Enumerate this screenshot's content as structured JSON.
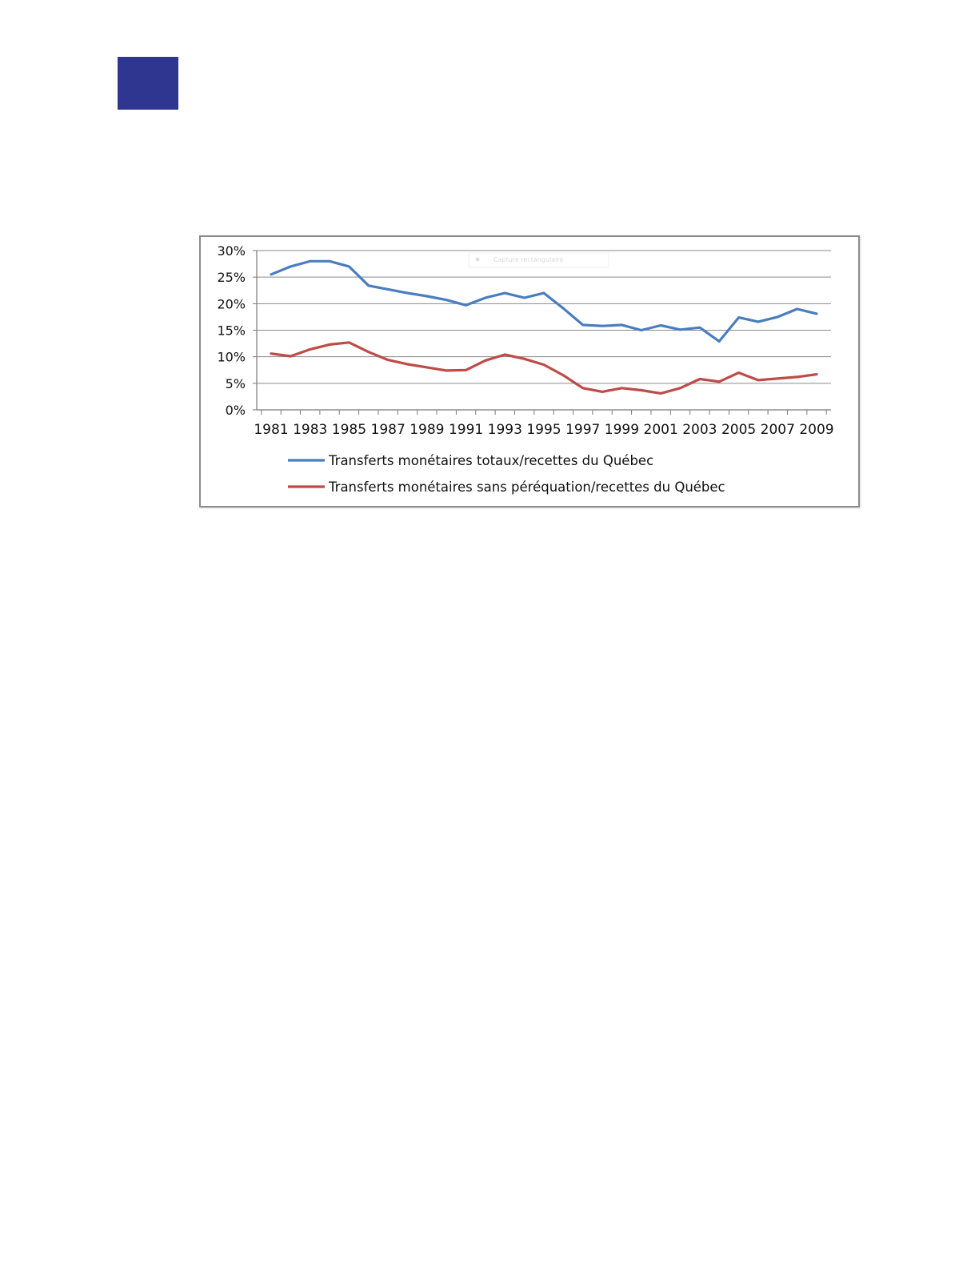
{
  "page": {
    "corner_block_color": "#2e3690"
  },
  "chart_data": {
    "type": "line",
    "title": "",
    "xlabel": "",
    "ylabel": "",
    "x": [
      1981,
      1982,
      1983,
      1984,
      1985,
      1986,
      1987,
      1988,
      1989,
      1990,
      1991,
      1992,
      1993,
      1994,
      1995,
      1996,
      1997,
      1998,
      1999,
      2000,
      2001,
      2002,
      2003,
      2004,
      2005,
      2006,
      2007,
      2008,
      2009
    ],
    "x_tick_labels": [
      "1981",
      "1983",
      "1985",
      "1987",
      "1989",
      "1991",
      "1993",
      "1995",
      "1997",
      "1999",
      "2001",
      "2003",
      "2005",
      "2007",
      "2009"
    ],
    "ylim": [
      0,
      30
    ],
    "y_ticks": [
      0,
      5,
      10,
      15,
      20,
      25,
      30
    ],
    "y_tick_labels": [
      "0%",
      "5%",
      "10%",
      "15%",
      "20%",
      "25%",
      "30%"
    ],
    "grid": true,
    "legend_position": "bottom",
    "series": [
      {
        "name": "Transferts monétaires totaux/recettes du Québec",
        "color": "#4a7dbf",
        "values": [
          25.5,
          27.0,
          28.0,
          28.0,
          27.0,
          23.4,
          22.7,
          22.0,
          21.4,
          20.7,
          19.7,
          21.1,
          22.0,
          21.1,
          22.0,
          19.1,
          16.0,
          15.8,
          16.0,
          15.0,
          15.9,
          15.1,
          15.5,
          12.9,
          17.4,
          16.6,
          17.5,
          19.0,
          18.1
        ]
      },
      {
        "name": "Transferts monétaires sans péréquation/recettes du Québec",
        "color": "#be4b48",
        "values": [
          10.6,
          10.1,
          11.4,
          12.3,
          12.7,
          10.9,
          9.4,
          8.6,
          8.0,
          7.4,
          7.5,
          9.3,
          10.4,
          9.6,
          8.5,
          6.5,
          4.1,
          3.4,
          4.1,
          3.7,
          3.1,
          4.1,
          5.8,
          5.3,
          7.0,
          5.6,
          5.9,
          6.2,
          6.7
        ]
      }
    ],
    "annotation": "Capture rectangulaire"
  }
}
